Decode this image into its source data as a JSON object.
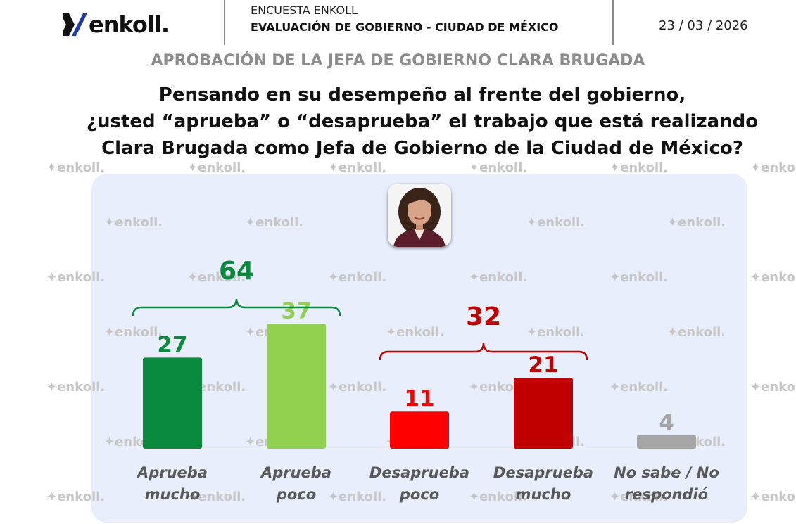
{
  "header": {
    "logo_text": "enkoll.",
    "survey_label": "ENCUESTA ENKOLL",
    "survey_title": "EVALUACIÓN DE GOBIERNO - CIUDAD DE MÉXICO",
    "date": "23 / 03 / 2026"
  },
  "subtitle": "APROBACIÓN DE LA JEFA DE GOBIERNO CLARA BRUGADA",
  "question": [
    "Pensando en su desempeño al frente del gobierno,",
    "¿usted “aprueba” o “desaprueba” el trabajo que está realizando",
    "Clara Brugada como Jefa de Gobierno de la Ciudad de México?"
  ],
  "watermark_text": "enkoll.",
  "chart_data": {
    "type": "bar",
    "categories": [
      [
        "Aprueba",
        "mucho"
      ],
      [
        "Aprueba",
        "poco"
      ],
      [
        "Desaprueba",
        "poco"
      ],
      [
        "Desaprueba",
        "mucho"
      ],
      [
        "No sabe / No",
        "respondió"
      ]
    ],
    "values": [
      27,
      37,
      11,
      21,
      4
    ],
    "colors": [
      "#0a8a3c",
      "#92d050",
      "#ff0000",
      "#c00000",
      "#a6a6a6"
    ],
    "groups": [
      {
        "label": "64",
        "from": 0,
        "to": 1,
        "color": "#0a8a3c"
      },
      {
        "label": "32",
        "from": 2,
        "to": 3,
        "color": "#c00000"
      }
    ]
  }
}
